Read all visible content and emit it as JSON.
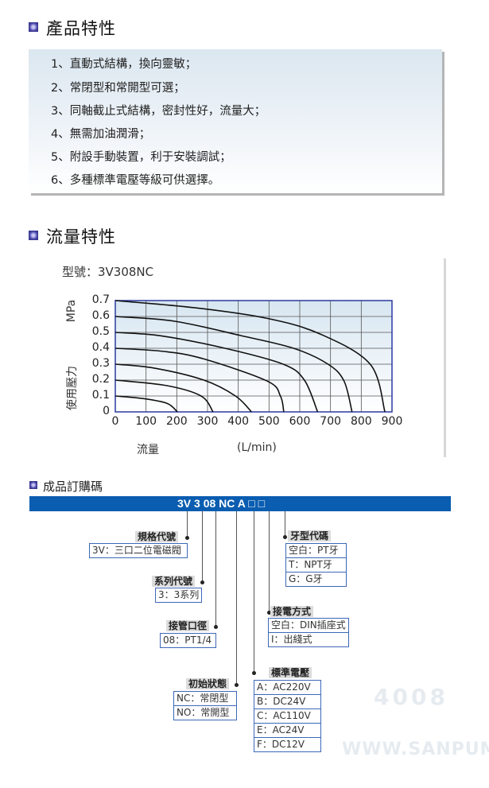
{
  "sections": {
    "features_title": "產品特性",
    "flow_title": "流量特性",
    "order_title": "成品訂購碼"
  },
  "features": [
    "1、直動式結構，換向靈敏；",
    "2、常閉型和常開型可選；",
    "3、同軸截止式結構，密封性好，流量大；",
    "4、無需加油潤滑；",
    "5、附設手動裝置，利于安裝調試；",
    "6、多種標準電壓等級可供選擇。"
  ],
  "model_label": "型號：3V308NC",
  "watermark": [
    "4008",
    "WWW.SANPUM"
  ],
  "chart_data": {
    "type": "line",
    "xlabel": "流量",
    "xunit": "(L/min)",
    "ylabel_unit": "MPa",
    "ylabel": "使用壓力",
    "xlim": [
      0,
      900
    ],
    "ylim": [
      0,
      0.7
    ],
    "x_ticks": [
      "0",
      "100",
      "200",
      "300",
      "400",
      "500",
      "600",
      "700",
      "800",
      "900"
    ],
    "y_ticks": [
      "0",
      "0.1",
      "0.2",
      "0.3",
      "0.4",
      "0.5",
      "0.6",
      "0.7"
    ],
    "grid": true,
    "series": [
      {
        "points": [
          [
            0,
            0.1
          ],
          [
            90,
            0.084
          ],
          [
            168,
            0.054
          ],
          [
            202,
            0
          ]
        ]
      },
      {
        "points": [
          [
            0,
            0.2
          ],
          [
            168,
            0.165
          ],
          [
            279,
            0.1
          ],
          [
            318,
            0
          ]
        ]
      },
      {
        "points": [
          [
            0,
            0.3
          ],
          [
            125,
            0.276
          ],
          [
            288,
            0.2
          ],
          [
            391,
            0.1
          ],
          [
            443,
            0
          ]
        ]
      },
      {
        "points": [
          [
            0,
            0.4
          ],
          [
            159,
            0.38
          ],
          [
            288,
            0.333
          ],
          [
            494,
            0.194
          ],
          [
            537,
            0.1
          ],
          [
            548,
            0
          ]
        ]
      },
      {
        "points": [
          [
            0,
            0.5
          ],
          [
            150,
            0.478
          ],
          [
            357,
            0.4
          ],
          [
            546,
            0.3
          ],
          [
            615,
            0.2
          ],
          [
            658,
            0
          ]
        ]
      },
      {
        "points": [
          [
            0,
            0.6
          ],
          [
            193,
            0.57
          ],
          [
            408,
            0.48
          ],
          [
            580,
            0.4
          ],
          [
            692,
            0.3
          ],
          [
            744,
            0.194
          ],
          [
            770,
            0
          ]
        ]
      },
      {
        "points": [
          [
            0,
            0.7
          ],
          [
            262,
            0.654
          ],
          [
            494,
            0.588
          ],
          [
            666,
            0.49
          ],
          [
            829,
            0.3
          ],
          [
            877,
            0
          ]
        ]
      }
    ],
    "colors": {
      "frame": "#2b3aa0",
      "grid": "#555555",
      "line": "#111111"
    }
  },
  "order": {
    "code": "3V 3 08 NC A □ □",
    "bar_color": "#0a5db0",
    "groups": {
      "spec": {
        "label": "規格代號",
        "options": [
          "3V：三口二位電磁閥"
        ]
      },
      "series": {
        "label": "系列代號",
        "options": [
          "3：3系列"
        ]
      },
      "port": {
        "label": "接管口徑",
        "options": [
          "08：PT1/4"
        ]
      },
      "state": {
        "label": "初始狀態",
        "options": [
          "NC：常閉型",
          "NO：常開型"
        ]
      },
      "voltage": {
        "label": "標準電壓",
        "options": [
          "A：AC220V",
          "B：DC24V",
          "C：AC110V",
          "E：AC24V",
          "F：DC12V"
        ]
      },
      "wiring": {
        "label": "接電方式",
        "options": [
          "空白：DIN插座式",
          "I：出綫式"
        ]
      },
      "thread": {
        "label": "牙型代碼",
        "options": [
          "空白：PT牙",
          "T：NPT牙",
          "G：G牙"
        ]
      }
    }
  }
}
